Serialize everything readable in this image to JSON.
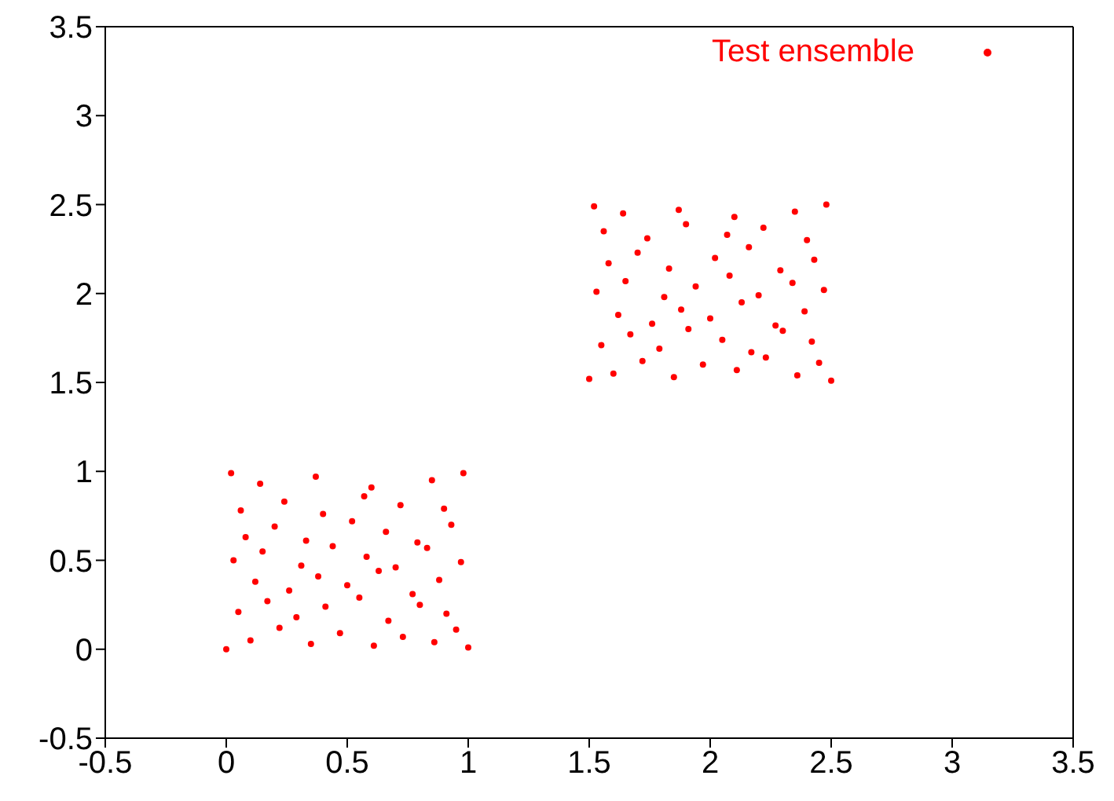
{
  "chart_data": {
    "type": "scatter",
    "xlim": [
      -0.5,
      3.5
    ],
    "ylim": [
      -0.5,
      3.5
    ],
    "xticks": [
      -0.5,
      0,
      0.5,
      1,
      1.5,
      2,
      2.5,
      3,
      3.5
    ],
    "yticks": [
      -0.5,
      0,
      0.5,
      1,
      1.5,
      2,
      2.5,
      3,
      3.5
    ],
    "legend": "top right",
    "marker": "circle",
    "series": [
      {
        "name": "Test ensemble",
        "color": "#ff0000",
        "x": [
          0,
          1,
          0.02,
          0.98,
          0.1,
          0.22,
          0.35,
          0.47,
          0.61,
          0.73,
          0.86,
          0.95,
          0.05,
          0.17,
          0.29,
          0.41,
          0.55,
          0.67,
          0.8,
          0.91,
          0.12,
          0.26,
          0.38,
          0.5,
          0.63,
          0.77,
          0.88,
          0.03,
          0.15,
          0.31,
          0.44,
          0.58,
          0.7,
          0.83,
          0.97,
          0.08,
          0.2,
          0.33,
          0.52,
          0.66,
          0.79,
          0.93,
          0.06,
          0.24,
          0.4,
          0.57,
          0.72,
          0.9,
          0.14,
          0.37,
          0.6,
          0.85,
          1.5,
          2.5,
          1.52,
          2.48,
          1.6,
          1.72,
          1.85,
          1.97,
          2.11,
          2.23,
          2.36,
          2.45,
          1.55,
          1.67,
          1.79,
          1.91,
          2.05,
          2.17,
          2.3,
          2.42,
          1.62,
          1.76,
          1.88,
          2,
          2.13,
          2.27,
          2.39,
          1.53,
          1.65,
          1.81,
          1.94,
          2.08,
          2.2,
          2.34,
          2.47,
          1.58,
          1.7,
          1.83,
          2.02,
          2.16,
          2.29,
          2.43,
          1.56,
          1.74,
          1.9,
          2.07,
          2.22,
          2.4,
          1.64,
          1.87,
          2.1,
          2.35
        ],
        "values": [
          0,
          0.01,
          0.99,
          0.99,
          0.05,
          0.12,
          0.03,
          0.09,
          0.02,
          0.07,
          0.04,
          0.11,
          0.21,
          0.27,
          0.18,
          0.24,
          0.29,
          0.16,
          0.25,
          0.2,
          0.38,
          0.33,
          0.41,
          0.36,
          0.44,
          0.31,
          0.39,
          0.5,
          0.55,
          0.47,
          0.58,
          0.52,
          0.46,
          0.57,
          0.49,
          0.63,
          0.69,
          0.61,
          0.72,
          0.66,
          0.6,
          0.7,
          0.78,
          0.83,
          0.76,
          0.86,
          0.81,
          0.79,
          0.93,
          0.97,
          0.91,
          0.95,
          1.52,
          1.51,
          2.49,
          2.5,
          1.55,
          1.62,
          1.53,
          1.6,
          1.57,
          1.64,
          1.54,
          1.61,
          1.71,
          1.77,
          1.69,
          1.8,
          1.74,
          1.67,
          1.79,
          1.73,
          1.88,
          1.83,
          1.91,
          1.86,
          1.95,
          1.82,
          1.9,
          2.01,
          2.07,
          1.98,
          2.04,
          2.1,
          1.99,
          2.06,
          2.02,
          2.17,
          2.23,
          2.14,
          2.2,
          2.26,
          2.13,
          2.19,
          2.35,
          2.31,
          2.39,
          2.33,
          2.37,
          2.3,
          2.45,
          2.47,
          2.43,
          2.46
        ]
      }
    ]
  }
}
